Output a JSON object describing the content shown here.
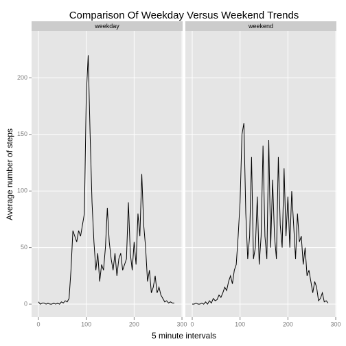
{
  "chart_data": {
    "type": "line",
    "title": "Comparison Of Weekday Versus Weekend Trends",
    "x_label": "5 minute intervals",
    "y_label": "Average number of steps",
    "x": [
      0,
      4,
      8,
      12,
      16,
      20,
      24,
      28,
      32,
      36,
      40,
      44,
      48,
      52,
      56,
      60,
      64,
      68,
      72,
      76,
      80,
      84,
      88,
      92,
      96,
      100,
      104,
      108,
      112,
      116,
      120,
      124,
      128,
      132,
      136,
      140,
      144,
      148,
      152,
      156,
      160,
      164,
      168,
      172,
      176,
      180,
      184,
      188,
      192,
      196,
      200,
      204,
      208,
      212,
      216,
      220,
      224,
      228,
      232,
      236,
      240,
      244,
      248,
      252,
      256,
      260,
      264,
      268,
      272,
      276,
      280,
      284
    ],
    "series": [
      {
        "name": "weekday",
        "color": "#000000",
        "values": [
          2,
          0,
          1,
          1,
          0,
          1,
          0,
          0,
          1,
          0,
          1,
          0,
          2,
          1,
          3,
          2,
          5,
          30,
          65,
          60,
          55,
          65,
          60,
          70,
          80,
          185,
          220,
          150,
          90,
          55,
          30,
          45,
          20,
          35,
          30,
          50,
          85,
          55,
          40,
          30,
          45,
          25,
          40,
          45,
          30,
          35,
          40,
          90,
          45,
          30,
          55,
          35,
          80,
          60,
          115,
          70,
          50,
          20,
          30,
          10,
          15,
          25,
          10,
          15,
          8,
          5,
          2,
          3,
          1,
          2,
          1,
          1
        ]
      },
      {
        "name": "weekend",
        "color": "#000000",
        "values": [
          0,
          0,
          1,
          0,
          0,
          1,
          0,
          2,
          0,
          3,
          1,
          5,
          3,
          4,
          8,
          6,
          10,
          15,
          12,
          20,
          25,
          18,
          30,
          35,
          60,
          90,
          150,
          160,
          80,
          40,
          60,
          130,
          40,
          50,
          95,
          35,
          60,
          140,
          60,
          40,
          145,
          50,
          110,
          60,
          40,
          130,
          70,
          50,
          120,
          60,
          95,
          50,
          100,
          70,
          40,
          80,
          55,
          60,
          35,
          50,
          25,
          30,
          20,
          10,
          20,
          15,
          3,
          5,
          10,
          2,
          3,
          1
        ]
      }
    ],
    "xlim": [
      -14.35,
      301.35
    ],
    "ylim": [
      -11.5,
      241.5
    ],
    "xticks": [
      0,
      100,
      200,
      300
    ],
    "yticks": [
      0,
      50,
      100,
      150,
      200
    ],
    "grid": true,
    "facet": true
  }
}
